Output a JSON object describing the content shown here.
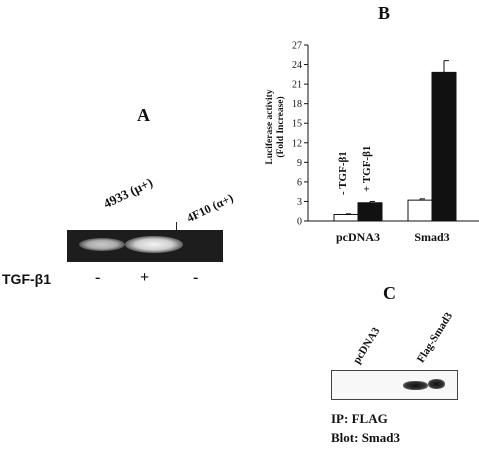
{
  "panel_a": {
    "letter": "A",
    "lane1_label": "4933 (μ+)",
    "lane2_label": "4F10 (α+)",
    "treatment_label": "TGF-β1",
    "signs": [
      "-",
      "+",
      "-"
    ]
  },
  "panel_b": {
    "letter": "B"
  },
  "panel_c": {
    "letter": "C",
    "lane1_label": "pcDNA3",
    "lane2_label": "Flag-Smad3",
    "ip_label": "IP: FLAG",
    "blot_label": "Blot: Smad3"
  },
  "chart_data": {
    "type": "bar",
    "ylabel_line1": "Luciferase activity",
    "ylabel_line2": "(Fold Increase)",
    "ylim": [
      0,
      27
    ],
    "yticks": [
      0,
      3,
      6,
      9,
      12,
      15,
      18,
      21,
      24,
      27
    ],
    "categories": [
      "pcDNA3",
      "Smad3"
    ],
    "series": [
      {
        "name": "- TGF-β1",
        "color": "#ffffff",
        "values": [
          1.0,
          3.2
        ],
        "errors": [
          0.1,
          0.2
        ]
      },
      {
        "name": "+ TGF-β1",
        "color": "#111111",
        "values": [
          2.8,
          22.8
        ],
        "errors": [
          0.2,
          1.8
        ]
      }
    ]
  }
}
